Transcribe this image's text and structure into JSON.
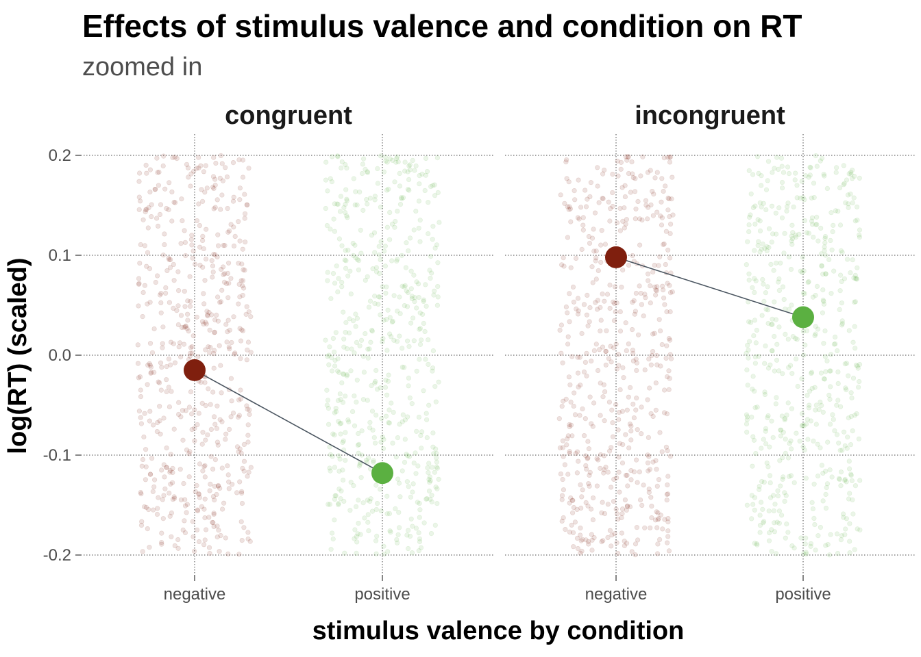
{
  "chart_data": {
    "type": "scatter",
    "title": "Effects of stimulus valence and condition on RT",
    "subtitle": "zoomed in",
    "xlabel": "stimulus valence by condition",
    "ylabel": "log(RT) (scaled)",
    "ylim": [
      -0.2,
      0.2
    ],
    "y_ticks": [
      0.2,
      0.1,
      0.0,
      -0.1,
      -0.2
    ],
    "y_tick_labels": [
      "0.2",
      "0.1",
      "0.0",
      "-0.1",
      "-0.2"
    ],
    "categories": [
      "negative",
      "positive"
    ],
    "grid": true,
    "legend": "none",
    "colors": {
      "negative": "#7f1f0e",
      "positive": "#5bb041",
      "line": "#4a5560"
    },
    "panels": [
      {
        "condition": "congruent",
        "means": [
          {
            "valence": "negative",
            "value": -0.015
          },
          {
            "valence": "positive",
            "value": -0.118
          }
        ]
      },
      {
        "condition": "incongruent",
        "means": [
          {
            "valence": "negative",
            "value": 0.098
          },
          {
            "valence": "positive",
            "value": 0.038
          }
        ]
      }
    ],
    "raw_points": "jittered individual trials spanning the full y range, one cloud per valence per condition"
  }
}
